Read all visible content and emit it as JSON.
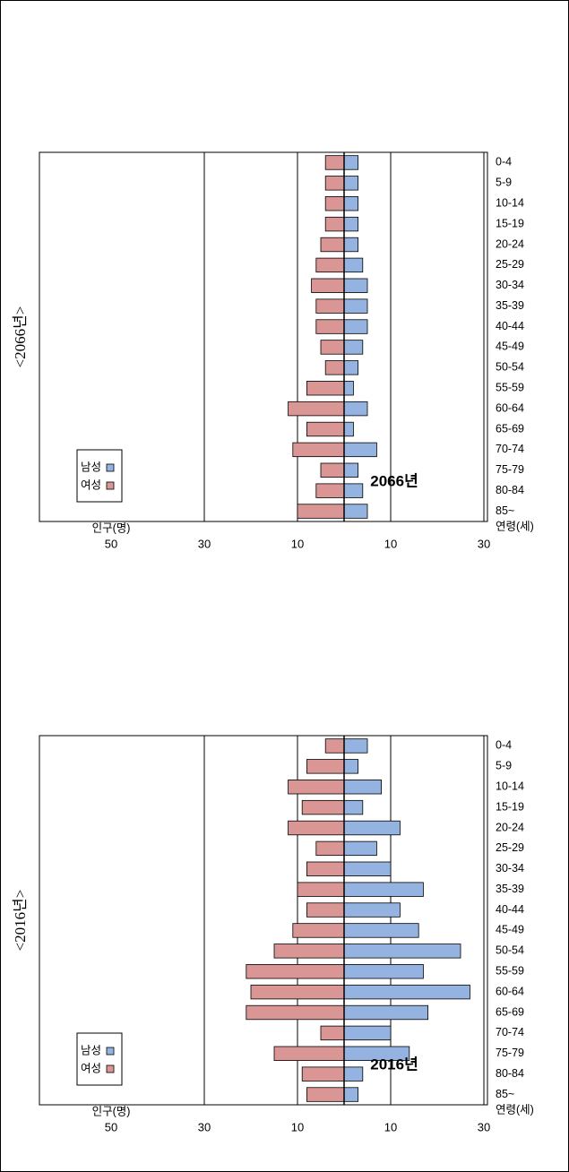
{
  "colors": {
    "female": "#d99694",
    "male": "#95b3e0",
    "border": "#000000"
  },
  "chart_data": [
    {
      "type": "bar",
      "orientation": "horizontal-diverging",
      "year_label": "2016년",
      "caption": "<2016년>",
      "category_axis_label": "연령(세)",
      "value_axis_label": "인구(명)",
      "categories": [
        "85~",
        "80-84",
        "75-79",
        "70-74",
        "65-69",
        "60-64",
        "55-59",
        "50-54",
        "45-49",
        "40-44",
        "35-39",
        "30-34",
        "25-29",
        "20-24",
        "15-19",
        "10-14",
        "5-9",
        "0-4"
      ],
      "series": [
        {
          "name": "여성",
          "side": "right",
          "values": [
            8,
            9,
            15,
            5,
            21,
            20,
            21,
            15,
            11,
            8,
            10,
            8,
            6,
            12,
            9,
            12,
            8,
            4
          ]
        },
        {
          "name": "남성",
          "side": "left",
          "values": [
            3,
            4,
            14,
            10,
            18,
            27,
            17,
            25,
            16,
            12,
            17,
            10,
            7,
            12,
            4,
            8,
            3,
            5
          ]
        }
      ],
      "tick_labels": [
        "50",
        "30",
        "10",
        "10",
        "30",
        "50"
      ],
      "xlim": [
        -50,
        50
      ],
      "gridlines": [
        -30,
        -10,
        10,
        30
      ],
      "legend": [
        "여성",
        "남성"
      ],
      "legend_position": "top-right"
    },
    {
      "type": "bar",
      "orientation": "horizontal-diverging",
      "year_label": "2066년",
      "caption": "<2066년>",
      "category_axis_label": "연령(세)",
      "value_axis_label": "인구(명)",
      "categories": [
        "85~",
        "80-84",
        "75-79",
        "70-74",
        "65-69",
        "60-64",
        "55-59",
        "50-54",
        "45-49",
        "40-44",
        "35-39",
        "30-34",
        "25-29",
        "20-24",
        "15-19",
        "10-14",
        "5-9",
        "0-4"
      ],
      "series": [
        {
          "name": "여성",
          "side": "right",
          "values": [
            10,
            6,
            5,
            11,
            8,
            12,
            8,
            4,
            5,
            6,
            6,
            7,
            6,
            5,
            4,
            4,
            4,
            4
          ]
        },
        {
          "name": "남성",
          "side": "left",
          "values": [
            5,
            4,
            3,
            7,
            2,
            5,
            2,
            3,
            4,
            5,
            5,
            5,
            4,
            3,
            3,
            3,
            3,
            3
          ]
        }
      ],
      "tick_labels": [
        "50",
        "30",
        "10",
        "10",
        "30",
        "50"
      ],
      "xlim": [
        -50,
        50
      ],
      "gridlines": [
        -30,
        -10,
        10,
        30
      ],
      "legend": [
        "여성",
        "남성"
      ],
      "legend_position": "top-right"
    }
  ]
}
